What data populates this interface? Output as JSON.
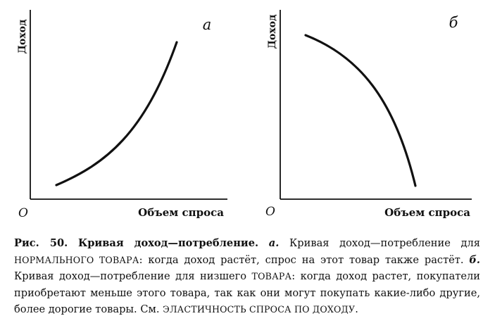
{
  "panels": [
    {
      "letter": "а",
      "y_label": "Доход",
      "x_label": "Объем спроса",
      "origin": "O",
      "trend": "increasing"
    },
    {
      "letter": "б",
      "y_label": "Доход",
      "x_label": "Объем спроса",
      "origin": "O",
      "trend": "decreasing"
    }
  ],
  "caption": {
    "fig_no": "Рис. 50.",
    "fig_title": "Кривая доход—потребление.",
    "a_mark": "а.",
    "text1": "Кривая доход—потребление для ",
    "sc1": "НОРМАЛЬНОГО ТОВАРА",
    "text2": ": когда доход растёт, спрос на этот товар также растёт.",
    "b_mark": "б.",
    "text3": "Кривая доход—потребление для низшего ",
    "sc2": "ТОВАРА",
    "text4": ": когда доход растет, покупатели приобретают меньше этого товара, так как они могут покупать какие-либо другие, более дорогие товары. См. ",
    "sc3": "ЭЛАСТИЧНОСТЬ СПРОСА ПО ДОХОДУ",
    "text5": "."
  }
}
